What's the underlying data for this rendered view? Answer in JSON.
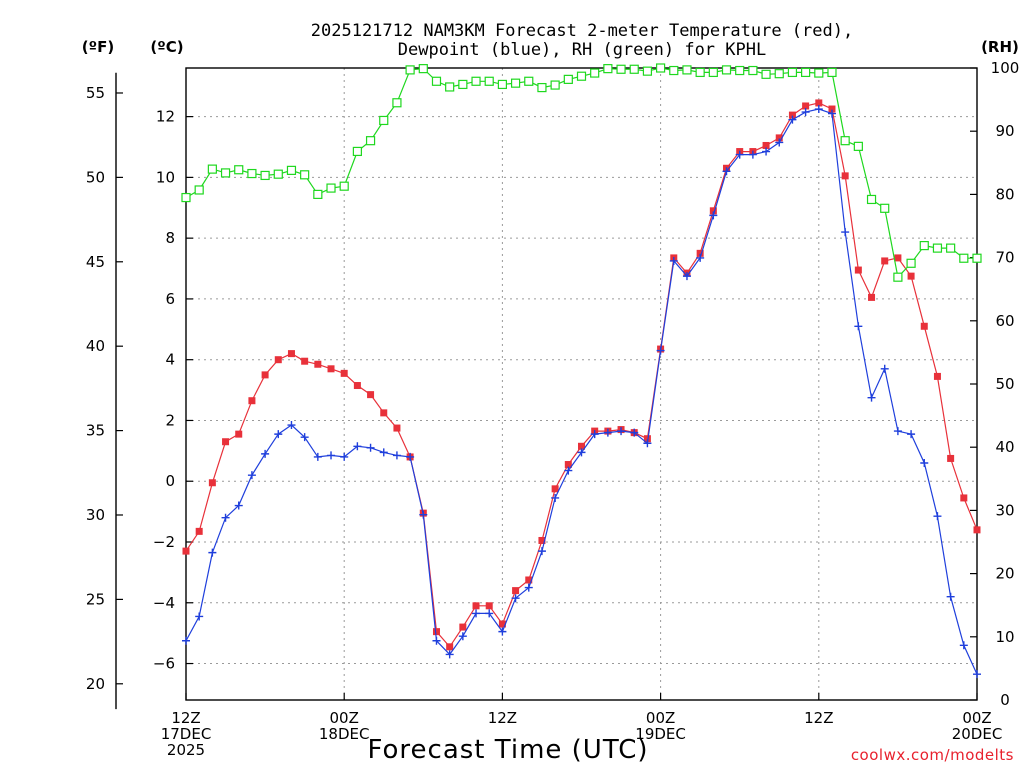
{
  "chart_data": {
    "type": "line",
    "title_line1": "2025121712 NAM3KM Forecast 2-meter Temperature (red),",
    "title_line2": "Dewpoint (blue), RH (green) for KPHL",
    "units": {
      "fahrenheit": "(ºF)",
      "celsius": "(ºC)",
      "rh": "(RH)"
    },
    "xlabel": "Forecast Time (UTC)",
    "credit": "coolwx.com/modelts",
    "x_hours_range": [
      0,
      60
    ],
    "x_ticks": [
      {
        "hour": 0,
        "lines": [
          "12Z",
          "17DEC",
          "2025"
        ]
      },
      {
        "hour": 12,
        "lines": [
          "00Z",
          "18DEC"
        ]
      },
      {
        "hour": 24,
        "lines": [
          "12Z"
        ]
      },
      {
        "hour": 36,
        "lines": [
          "00Z",
          "19DEC"
        ]
      },
      {
        "hour": 48,
        "lines": [
          "12Z"
        ]
      },
      {
        "hour": 60,
        "lines": [
          "00Z",
          "20DEC"
        ]
      }
    ],
    "celsius_axis": {
      "range": [
        -7.2,
        13.6
      ],
      "ticks": [
        "12",
        "10",
        "8",
        "6",
        "4",
        "2",
        "0",
        "−2",
        "−4",
        "−6"
      ],
      "tick_values": [
        12,
        10,
        8,
        6,
        4,
        2,
        0,
        -2,
        -4,
        -6
      ]
    },
    "fahrenheit_axis": {
      "ticks": [
        "55",
        "50",
        "45",
        "40",
        "35",
        "30",
        "25",
        "20"
      ],
      "tick_values": [
        55,
        50,
        45,
        40,
        35,
        30,
        25,
        20
      ]
    },
    "rh_axis": {
      "range": [
        0,
        100
      ],
      "ticks": [
        "100",
        "90",
        "80",
        "70",
        "60",
        "50",
        "40",
        "30",
        "20",
        "10",
        "0"
      ],
      "tick_values": [
        100,
        90,
        80,
        70,
        60,
        50,
        40,
        30,
        20,
        10,
        0
      ]
    },
    "series": [
      {
        "name": "2-meter Temperature",
        "unit": "C",
        "color": "#e8313a",
        "marker": "filled-square",
        "values": [
          -2.3,
          -1.65,
          -0.05,
          1.3,
          1.55,
          2.65,
          3.5,
          4.0,
          4.2,
          3.95,
          3.85,
          3.7,
          3.55,
          3.15,
          2.85,
          2.25,
          1.75,
          0.8,
          -1.05,
          -4.95,
          -5.45,
          -4.8,
          -4.1,
          -4.1,
          -4.7,
          -3.6,
          -3.25,
          -1.95,
          -0.25,
          0.55,
          1.15,
          1.65,
          1.65,
          1.7,
          1.6,
          1.4,
          4.35,
          7.35,
          6.85,
          7.5,
          8.9,
          10.3,
          10.85,
          10.85,
          11.05,
          11.3,
          12.05,
          12.35,
          12.45,
          12.25,
          10.05,
          6.95,
          6.05,
          7.25,
          7.35,
          6.75,
          5.1,
          3.45,
          0.75,
          -0.55,
          -1.6
        ]
      },
      {
        "name": "Dewpoint",
        "unit": "C",
        "color": "#1f3fdc",
        "marker": "plus",
        "values": [
          -5.25,
          -4.45,
          -2.35,
          -1.2,
          -0.8,
          0.2,
          0.9,
          1.55,
          1.85,
          1.45,
          0.8,
          0.85,
          0.8,
          1.15,
          1.1,
          0.95,
          0.85,
          0.8,
          -1.1,
          -5.25,
          -5.7,
          -5.1,
          -4.35,
          -4.35,
          -4.95,
          -3.85,
          -3.5,
          -2.3,
          -0.55,
          0.35,
          0.95,
          1.55,
          1.6,
          1.65,
          1.6,
          1.25,
          4.3,
          7.25,
          6.75,
          7.35,
          8.75,
          10.2,
          10.75,
          10.75,
          10.85,
          11.15,
          11.9,
          12.15,
          12.25,
          12.1,
          8.2,
          5.1,
          2.75,
          3.7,
          1.65,
          1.55,
          0.6,
          -1.15,
          -3.8,
          -5.4,
          -6.35
        ]
      },
      {
        "name": "RH",
        "unit": "%",
        "color": "#1ed81e",
        "marker": "open-square",
        "values": [
          79.5,
          80.7,
          84.0,
          83.4,
          83.9,
          83.3,
          83.0,
          83.2,
          83.8,
          83.1,
          80.0,
          81.0,
          81.3,
          86.8,
          88.5,
          91.7,
          94.5,
          99.7,
          99.9,
          97.9,
          97.0,
          97.4,
          97.9,
          97.9,
          97.4,
          97.6,
          97.9,
          96.9,
          97.3,
          98.2,
          98.7,
          99.2,
          99.9,
          99.8,
          99.8,
          99.5,
          100.0,
          99.6,
          99.7,
          99.3,
          99.3,
          99.7,
          99.6,
          99.6,
          99.0,
          99.1,
          99.3,
          99.3,
          99.2,
          99.3,
          88.5,
          87.6,
          79.2,
          77.8,
          66.9,
          69.1,
          71.9,
          71.5,
          71.5,
          69.9,
          69.9
        ]
      }
    ]
  }
}
